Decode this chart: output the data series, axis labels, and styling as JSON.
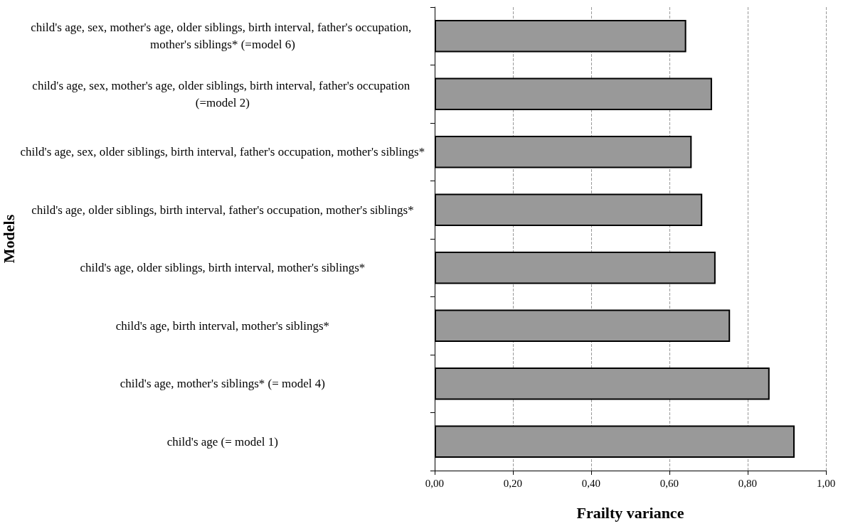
{
  "chart_data": {
    "type": "bar",
    "orientation": "horizontal",
    "xlabel": "Frailty variance",
    "ylabel": "Models",
    "categories": [
      "child's age, sex, mother's age, older siblings, birth interval, father's occupation, mother's siblings* (=model 6)",
      "child's age, sex, mother's age, older siblings, birth interval, father's occupation (=model 2)",
      "child's age, sex, older siblings, birth interval, father's occupation, mother's siblings*",
      "child's age, older siblings, birth interval, father's occupation, mother's siblings*",
      "child's age, older siblings, birth interval, mother's siblings*",
      "child's age, birth interval, mother's siblings*",
      "child's age, mother's siblings* (= model 4)",
      "child's age (= model 1)"
    ],
    "values": [
      0.643,
      0.709,
      0.657,
      0.684,
      0.718,
      0.755,
      0.856,
      0.92
    ],
    "color": "#999999",
    "xlim": [
      0,
      1
    ],
    "xticks": [
      {
        "value": 0,
        "label": "0,00"
      },
      {
        "value": 0.2,
        "label": "0,20"
      },
      {
        "value": 0.4,
        "label": "0,40"
      },
      {
        "value": 0.6,
        "label": "0,60"
      },
      {
        "value": 0.8,
        "label": "0,80"
      },
      {
        "value": 1,
        "label": "1,00"
      }
    ],
    "grid": "x"
  }
}
